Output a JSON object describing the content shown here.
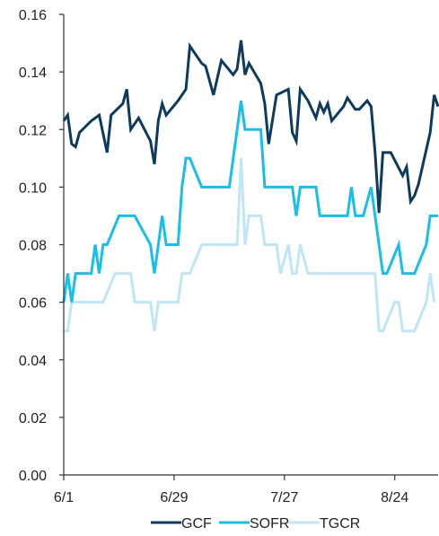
{
  "chart_data": {
    "type": "line",
    "ylim": [
      0,
      0.16
    ],
    "y_ticks": [
      "0.00",
      "0.02",
      "0.04",
      "0.06",
      "0.08",
      "0.10",
      "0.12",
      "0.14",
      "0.16"
    ],
    "x_ticks": [
      "6/1",
      "6/29",
      "7/27",
      "8/24"
    ],
    "grid": false,
    "legend_position": "bottom",
    "series": [
      {
        "name": "GCF",
        "color": "#0e3a5c",
        "points": [
          [
            0,
            0.123
          ],
          [
            1,
            0.125
          ],
          [
            2,
            0.115
          ],
          [
            3,
            0.114
          ],
          [
            4,
            0.119
          ],
          [
            7,
            0.123
          ],
          [
            9,
            0.125
          ],
          [
            11,
            0.112
          ],
          [
            12,
            0.125
          ],
          [
            15,
            0.129
          ],
          [
            16,
            0.134
          ],
          [
            17,
            0.12
          ],
          [
            19,
            0.124
          ],
          [
            22,
            0.116
          ],
          [
            23,
            0.108
          ],
          [
            24,
            0.123
          ],
          [
            25,
            0.129
          ],
          [
            26,
            0.125
          ],
          [
            29,
            0.13
          ],
          [
            31,
            0.134
          ],
          [
            32,
            0.149
          ],
          [
            35,
            0.143
          ],
          [
            36,
            0.142
          ],
          [
            37,
            0.137
          ],
          [
            38,
            0.132
          ],
          [
            40,
            0.144
          ],
          [
            43,
            0.139
          ],
          [
            44,
            0.141
          ],
          [
            45,
            0.151
          ],
          [
            46,
            0.139
          ],
          [
            47,
            0.143
          ],
          [
            50,
            0.136
          ],
          [
            51,
            0.129
          ],
          [
            52,
            0.115
          ],
          [
            54,
            0.132
          ],
          [
            57,
            0.134
          ],
          [
            58,
            0.119
          ],
          [
            59,
            0.116
          ],
          [
            60,
            0.134
          ],
          [
            62,
            0.13
          ],
          [
            64,
            0.124
          ],
          [
            65,
            0.129
          ],
          [
            66,
            0.126
          ],
          [
            67,
            0.129
          ],
          [
            68,
            0.123
          ],
          [
            71,
            0.128
          ],
          [
            72,
            0.131
          ],
          [
            74,
            0.127
          ],
          [
            75,
            0.127
          ],
          [
            77,
            0.13
          ],
          [
            78,
            0.128
          ],
          [
            79,
            0.112
          ],
          [
            80,
            0.091
          ],
          [
            81,
            0.112
          ],
          [
            82,
            0.112
          ],
          [
            83,
            0.112
          ],
          [
            86,
            0.104
          ],
          [
            87,
            0.107
          ],
          [
            88,
            0.095
          ],
          [
            89,
            0.097
          ],
          [
            90,
            0.101
          ],
          [
            93,
            0.119
          ],
          [
            94,
            0.132
          ],
          [
            95,
            0.128
          ]
        ]
      },
      {
        "name": "SOFR",
        "color": "#18bfe8",
        "points": [
          [
            0,
            0.06
          ],
          [
            1,
            0.07
          ],
          [
            2,
            0.06
          ],
          [
            3,
            0.07
          ],
          [
            7,
            0.07
          ],
          [
            8,
            0.08
          ],
          [
            9,
            0.07
          ],
          [
            10,
            0.08
          ],
          [
            11,
            0.08
          ],
          [
            14,
            0.09
          ],
          [
            18,
            0.09
          ],
          [
            22,
            0.08
          ],
          [
            23,
            0.07
          ],
          [
            25,
            0.09
          ],
          [
            26,
            0.08
          ],
          [
            29,
            0.08
          ],
          [
            30,
            0.1
          ],
          [
            31,
            0.11
          ],
          [
            32,
            0.11
          ],
          [
            35,
            0.1
          ],
          [
            42,
            0.1
          ],
          [
            45,
            0.13
          ],
          [
            46,
            0.12
          ],
          [
            50,
            0.12
          ],
          [
            51,
            0.1
          ],
          [
            58,
            0.1
          ],
          [
            59,
            0.09
          ],
          [
            60,
            0.1
          ],
          [
            64,
            0.1
          ],
          [
            65,
            0.09
          ],
          [
            72,
            0.09
          ],
          [
            73,
            0.1
          ],
          [
            74,
            0.09
          ],
          [
            76,
            0.09
          ],
          [
            78,
            0.1
          ],
          [
            79,
            0.09
          ],
          [
            81,
            0.07
          ],
          [
            82,
            0.07
          ],
          [
            85,
            0.08
          ],
          [
            86,
            0.07
          ],
          [
            89,
            0.07
          ],
          [
            92,
            0.08
          ],
          [
            93,
            0.09
          ],
          [
            95,
            0.09
          ]
        ]
      },
      {
        "name": "TGCR",
        "color": "#bfe6f6",
        "points": [
          [
            0,
            0.05
          ],
          [
            1,
            0.05
          ],
          [
            2,
            0.06
          ],
          [
            10,
            0.06
          ],
          [
            13,
            0.07
          ],
          [
            17,
            0.07
          ],
          [
            18,
            0.06
          ],
          [
            20,
            0.06
          ],
          [
            22,
            0.06
          ],
          [
            23,
            0.05
          ],
          [
            24,
            0.06
          ],
          [
            29,
            0.06
          ],
          [
            30,
            0.07
          ],
          [
            32,
            0.07
          ],
          [
            35,
            0.08
          ],
          [
            43,
            0.08
          ],
          [
            44,
            0.08
          ],
          [
            45,
            0.11
          ],
          [
            46,
            0.08
          ],
          [
            47,
            0.09
          ],
          [
            50,
            0.09
          ],
          [
            51,
            0.08
          ],
          [
            54,
            0.08
          ],
          [
            55,
            0.07
          ],
          [
            57,
            0.08
          ],
          [
            58,
            0.07
          ],
          [
            59,
            0.07
          ],
          [
            60,
            0.08
          ],
          [
            62,
            0.07
          ],
          [
            79,
            0.07
          ],
          [
            80,
            0.05
          ],
          [
            81,
            0.05
          ],
          [
            84,
            0.06
          ],
          [
            85,
            0.06
          ],
          [
            86,
            0.05
          ],
          [
            89,
            0.05
          ],
          [
            92,
            0.06
          ],
          [
            93,
            0.07
          ],
          [
            94,
            0.06
          ]
        ]
      }
    ]
  }
}
